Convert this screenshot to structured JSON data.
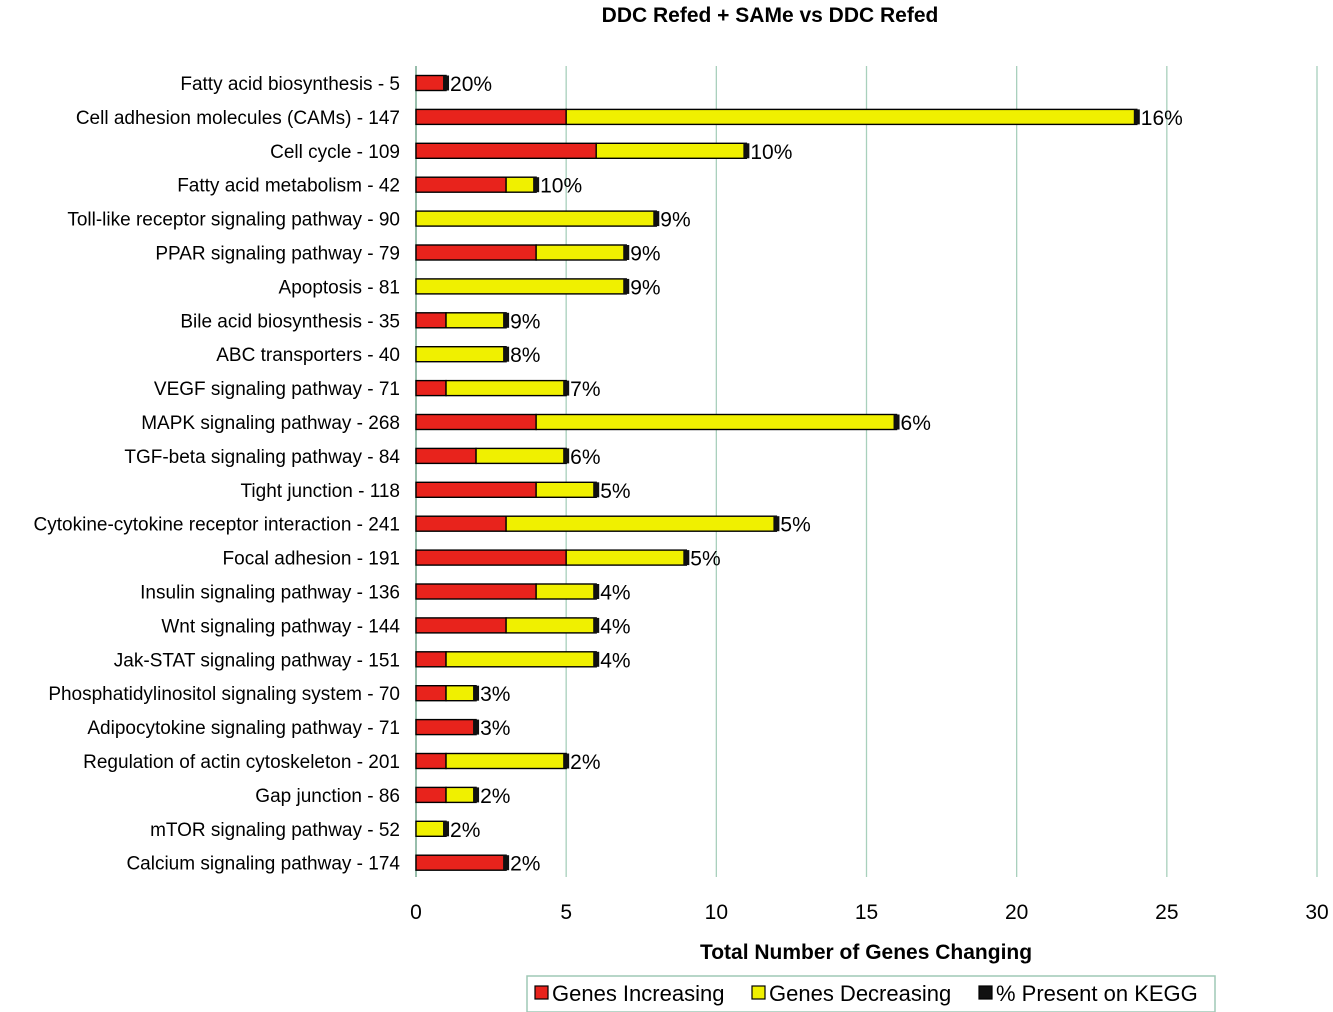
{
  "chart_data": {
    "type": "bar",
    "orientation": "horizontal",
    "stacked": true,
    "title": "DDC Refed + SAMe  vs  DDC Refed",
    "xlabel": "Total Number of Genes Changing",
    "ylabel": "",
    "xlim": [
      0,
      30
    ],
    "xticks": [
      "0",
      "5",
      "10",
      "15",
      "20",
      "25",
      "30"
    ],
    "grid": "vertical",
    "legend_position": "bottom",
    "categories": [
      "Fatty acid biosynthesis - 5",
      "Cell adhesion molecules (CAMs) - 147",
      "Cell cycle - 109",
      "Fatty acid metabolism - 42",
      "Toll-like receptor signaling pathway - 90",
      "PPAR signaling pathway - 79",
      "Apoptosis - 81",
      "Bile acid biosynthesis - 35",
      "ABC transporters - 40",
      "VEGF signaling pathway - 71",
      "MAPK signaling pathway - 268",
      "TGF-beta signaling pathway - 84",
      "Tight junction - 118",
      "Cytokine-cytokine receptor interaction - 241",
      "Focal adhesion - 191",
      "Insulin signaling pathway - 136",
      "Wnt signaling pathway - 144",
      "Jak-STAT signaling pathway - 151",
      "Phosphatidylinositol signaling system - 70",
      "Adipocytokine signaling pathway - 71",
      "Regulation of actin cytoskeleton - 201",
      "Gap junction - 86",
      "mTOR signaling pathway - 52",
      "Calcium signaling pathway - 174"
    ],
    "series": [
      {
        "name": "Genes Increasing",
        "color": "#e8231c",
        "values": [
          1,
          5,
          6,
          3,
          0,
          4,
          0,
          1,
          0,
          1,
          4,
          2,
          4,
          3,
          5,
          4,
          3,
          1,
          1,
          2,
          1,
          1,
          0,
          3
        ]
      },
      {
        "name": "Genes Decreasing",
        "color": "#f0f000",
        "values": [
          0,
          19,
          5,
          1,
          8,
          3,
          7,
          2,
          3,
          4,
          12,
          3,
          2,
          9,
          4,
          2,
          3,
          5,
          1,
          0,
          4,
          1,
          1,
          0
        ]
      },
      {
        "name": "% Present on KEGG",
        "color": "#111111",
        "values": [
          "20%",
          "16%",
          "10%",
          "10%",
          "9%",
          "9%",
          "9%",
          "9%",
          "8%",
          "7%",
          "6%",
          "6%",
          "5%",
          "5%",
          "5%",
          "4%",
          "4%",
          "4%",
          "3%",
          "3%",
          "2%",
          "2%",
          "2%",
          "2%"
        ]
      }
    ]
  }
}
